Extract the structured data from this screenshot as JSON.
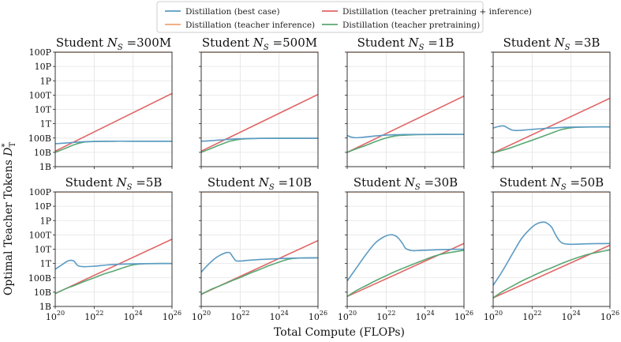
{
  "chart_data": {
    "type": "line",
    "xlabel": "Total Compute (FLOPs)",
    "ylabel": "Optimal Teacher Tokens D*T",
    "ylabel_main": "Optimal Teacher Tokens ",
    "ylabel_sym": "D",
    "ylabel_sup": "*",
    "ylabel_sub": "T",
    "x_scale": "log",
    "y_scale": "log",
    "xlim": [
      1e+20,
      1e+26
    ],
    "ylim": [
      1000000000.0,
      1e+17
    ],
    "x_ticks": [
      {
        "value": 1e+20,
        "base": "10",
        "exp": "20"
      },
      {
        "value": 1e+22,
        "base": "10",
        "exp": "22"
      },
      {
        "value": 1e+24,
        "base": "10",
        "exp": "24"
      },
      {
        "value": 1e+26,
        "base": "10",
        "exp": "26"
      }
    ],
    "y_ticks": [
      {
        "value": 1000000000.0,
        "label": "1B"
      },
      {
        "value": 10000000000.0,
        "label": "10B"
      },
      {
        "value": 100000000000.0,
        "label": "100B"
      },
      {
        "value": 1000000000000.0,
        "label": "1T"
      },
      {
        "value": 10000000000000.0,
        "label": "10T"
      },
      {
        "value": 100000000000000.0,
        "label": "100T"
      },
      {
        "value": 1000000000000000.0,
        "label": "1P"
      },
      {
        "value": 1e+16,
        "label": "10P"
      },
      {
        "value": 1e+17,
        "label": "100P"
      }
    ],
    "grid": true,
    "legend": {
      "placement": "top-center",
      "entries": [
        {
          "label": "Distillation (best case)",
          "color": "#5b9bc4"
        },
        {
          "label": "Distillation (teacher inference)",
          "color": "#f0a574"
        },
        {
          "label": "Distillation (teacher pretraining + inference)",
          "color": "#e06666"
        },
        {
          "label": "Distillation (teacher pretraining)",
          "color": "#5aa873"
        }
      ]
    },
    "colors": {
      "best": "#5b9bc4",
      "inference": "#f0a574",
      "pre_inf": "#e06666",
      "pre": "#5aa873"
    },
    "panels": [
      {
        "title_prefix": "Student ",
        "title_sym": "N",
        "title_sub": "S",
        "title_value": " =300M",
        "series": {
          "inference": {
            "x": [
              1e+20,
              1e+26
            ],
            "y": [
              1e+17,
              1e+17
            ]
          },
          "pre_inf": {
            "x": [
              1e+20,
              1e+26
            ],
            "y": [
              12000000000.0,
              130000000000000.0
            ]
          },
          "pre": {
            "x": [
              1e+20,
              3e+20,
              1e+21,
              3e+21,
              1e+22,
              1e+23,
              1e+24,
              1e+26
            ],
            "y": [
              10000000000.0,
              18000000000.0,
              35000000000.0,
              52000000000.0,
              57000000000.0,
              60000000000.0,
              60000000000.0,
              60000000000.0
            ]
          },
          "best": {
            "x": [
              1e+20,
              3e+20,
              1e+21,
              3e+21,
              1e+22,
              1e+23,
              1e+24,
              1e+26
            ],
            "y": [
              40000000000.0,
              44000000000.0,
              50000000000.0,
              55000000000.0,
              58000000000.0,
              60000000000.0,
              60000000000.0,
              60000000000.0
            ]
          }
        }
      },
      {
        "title_prefix": "Student ",
        "title_sym": "N",
        "title_sub": "S",
        "title_value": " =500M",
        "series": {
          "inference": {
            "x": [
              1e+20,
              1e+26
            ],
            "y": [
              1e+17,
              1e+17
            ]
          },
          "pre_inf": {
            "x": [
              1e+20,
              1e+26
            ],
            "y": [
              12000000000.0,
              110000000000000.0
            ]
          },
          "pre": {
            "x": [
              1e+20,
              3e+20,
              1e+21,
              3e+21,
              1e+22,
              3e+22,
              1e+23,
              1e+24,
              1e+26
            ],
            "y": [
              10000000000.0,
              18000000000.0,
              35000000000.0,
              60000000000.0,
              82000000000.0,
              90000000000.0,
              95000000000.0,
              96000000000.0,
              96000000000.0
            ]
          },
          "best": {
            "x": [
              1e+20,
              3e+20,
              1e+21,
              3e+21,
              1e+22,
              3e+22,
              1e+23,
              1e+24,
              1e+26
            ],
            "y": [
              60000000000.0,
              65000000000.0,
              73000000000.0,
              82000000000.0,
              88000000000.0,
              92000000000.0,
              95000000000.0,
              96000000000.0,
              96000000000.0
            ]
          }
        }
      },
      {
        "title_prefix": "Student ",
        "title_sym": "N",
        "title_sub": "S",
        "title_value": " =1B",
        "series": {
          "inference": {
            "x": [
              1e+20,
              1e+26
            ],
            "y": [
              1e+17,
              1e+17
            ]
          },
          "pre_inf": {
            "x": [
              1e+20,
              1e+26
            ],
            "y": [
              10000000000.0,
              85000000000000.0
            ]
          },
          "pre": {
            "x": [
              1e+20,
              3e+20,
              1e+21,
              3e+21,
              1e+22,
              3e+22,
              1e+23,
              3e+23,
              1e+24,
              1e+26
            ],
            "y": [
              10000000000.0,
              18000000000.0,
              32000000000.0,
              58000000000.0,
              100000000000.0,
              140000000000.0,
              160000000000.0,
              170000000000.0,
              175000000000.0,
              180000000000.0
            ]
          },
          "best": {
            "x": [
              1e+20,
              1.5e+20,
              2.5e+20,
              5e+20,
              1e+21,
              3e+21,
              1e+22,
              3e+22,
              1e+23,
              1e+24,
              1e+26
            ],
            "y": [
              150000000000.0,
              120000000000.0,
              105000000000.0,
              110000000000.0,
              120000000000.0,
              140000000000.0,
              160000000000.0,
              170000000000.0,
              175000000000.0,
              180000000000.0,
              180000000000.0
            ]
          }
        }
      },
      {
        "title_prefix": "Student ",
        "title_sym": "N",
        "title_sub": "S",
        "title_value": " =3B",
        "series": {
          "inference": {
            "x": [
              1e+20,
              1e+26
            ],
            "y": [
              1e+17,
              1e+17
            ]
          },
          "pre_inf": {
            "x": [
              1e+20,
              1e+26
            ],
            "y": [
              9000000000.0,
              60000000000000.0
            ]
          },
          "pre": {
            "x": [
              1e+20,
              3e+20,
              1e+21,
              3e+21,
              1e+22,
              3e+22,
              1e+23,
              3e+23,
              1e+24,
              3e+24,
              1e+25,
              1e+26
            ],
            "y": [
              9000000000.0,
              14000000000.0,
              23000000000.0,
              40000000000.0,
              70000000000.0,
              120000000000.0,
              220000000000.0,
              380000000000.0,
              520000000000.0,
              580000000000.0,
              600000000000.0,
              600000000000.0
            ]
          },
          "best": {
            "x": [
              1e+20,
              2e+20,
              3.5e+20,
              6e+20,
              1e+21,
              2e+21,
              5e+21,
              1e+22,
              3e+22,
              1e+23,
              1e+24,
              1e+26
            ],
            "y": [
              500000000000.0,
              650000000000.0,
              700000000000.0,
              480000000000.0,
              350000000000.0,
              340000000000.0,
              370000000000.0,
              400000000000.0,
              450000000000.0,
              500000000000.0,
              580000000000.0,
              600000000000.0
            ]
          }
        }
      },
      {
        "title_prefix": "Student ",
        "title_sym": "N",
        "title_sub": "S",
        "title_value": " =5B",
        "series": {
          "inference": {
            "x": [
              1e+20,
              1e+26
            ],
            "y": [
              1e+17,
              1e+17
            ]
          },
          "pre_inf": {
            "x": [
              1e+20,
              1e+26
            ],
            "y": [
              8000000000.0,
              50000000000000.0
            ]
          },
          "pre": {
            "x": [
              1e+20,
              3e+20,
              1e+21,
              3e+21,
              1e+22,
              3e+22,
              1e+23,
              3e+23,
              1e+24,
              3e+24,
              1e+25,
              1e+26
            ],
            "y": [
              8000000000.0,
              16000000000.0,
              30000000000.0,
              55000000000.0,
              100000000000.0,
              180000000000.0,
              300000000000.0,
              500000000000.0,
              800000000000.0,
              950000000000.0,
              1000000000000.0,
              1000000000000.0
            ]
          },
          "best": {
            "x": [
              1e+20,
              2e+20,
              4e+20,
              6e+20,
              8e+20,
              1e+21,
              1.5e+21,
              3e+21,
              1e+22,
              3e+22,
              1e+23,
              1e+24,
              1e+26
            ],
            "y": [
              400000000000.0,
              750000000000.0,
              1400000000000.0,
              1650000000000.0,
              1600000000000.0,
              1300000000000.0,
              700000000000.0,
              600000000000.0,
              650000000000.0,
              750000000000.0,
              850000000000.0,
              950000000000.0,
              1000000000000.0
            ]
          }
        }
      },
      {
        "title_prefix": "Student ",
        "title_sym": "N",
        "title_sub": "S",
        "title_value": " =10B",
        "series": {
          "inference": {
            "x": [
              1e+20,
              1e+26
            ],
            "y": [
              1e+17,
              1e+17
            ]
          },
          "pre_inf": {
            "x": [
              1e+20,
              1e+26
            ],
            "y": [
              7000000000.0,
              40000000000000.0
            ]
          },
          "pre": {
            "x": [
              1e+20,
              3e+20,
              1e+21,
              3e+21,
              1e+22,
              3e+22,
              1e+23,
              3e+23,
              1e+24,
              3e+24,
              1e+25,
              1e+26
            ],
            "y": [
              7000000000.0,
              15000000000.0,
              29000000000.0,
              55000000000.0,
              105000000000.0,
              200000000000.0,
              380000000000.0,
              700000000000.0,
              1250000000000.0,
              2000000000000.0,
              2400000000000.0,
              2500000000000.0
            ]
          },
          "best": {
            "x": [
              1e+20,
              2e+20,
              5e+20,
              1e+21,
              2e+21,
              3e+21,
              4e+21,
              6e+21,
              1e+22,
              3e+22,
              1e+23,
              1e+24,
              1e+25,
              1e+26
            ],
            "y": [
              250000000000.0,
              700000000000.0,
              2200000000000.0,
              4000000000000.0,
              5800000000000.0,
              5500000000000.0,
              3200000000000.0,
              1600000000000.0,
              1500000000000.0,
              1700000000000.0,
              1900000000000.0,
              2200000000000.0,
              2400000000000.0,
              2500000000000.0
            ]
          }
        }
      },
      {
        "title_prefix": "Student ",
        "title_sym": "N",
        "title_sub": "S",
        "title_value": " =30B",
        "series": {
          "inference": {
            "x": [
              1e+20,
              1e+26
            ],
            "y": [
              1e+17,
              1e+17
            ]
          },
          "pre_inf": {
            "x": [
              1e+20,
              1e+26
            ],
            "y": [
              5000000000.0,
              25000000000000.0
            ]
          },
          "pre": {
            "x": [
              1e+20,
              3e+20,
              1e+21,
              3e+21,
              1e+22,
              3e+22,
              1e+23,
              3e+23,
              1e+24,
              3e+24,
              1e+25,
              1e+26
            ],
            "y": [
              5000000000.0,
              13000000000.0,
              30000000000.0,
              65000000000.0,
              140000000000.0,
              280000000000.0,
              550000000000.0,
              1000000000000.0,
              1900000000000.0,
              3300000000000.0,
              5000000000000.0,
              8500000000000.0
            ]
          },
          "best": {
            "x": [
              1e+20,
              3e+20,
              1e+21,
              3e+21,
              8e+21,
              1.5e+22,
              2.5e+22,
              4e+22,
              7e+22,
              1e+23,
              2e+23,
              4e+23,
              1e+24,
              1e+25,
              1e+26
            ],
            "y": [
              60000000000.0,
              500000000000.0,
              5000000000000.0,
              30000000000000.0,
              75000000000000.0,
              100000000000000.0,
              95000000000000.0,
              65000000000000.0,
              25000000000000.0,
              11500000000000.0,
              8000000000000.0,
              8000000000000.0,
              8500000000000.0,
              9500000000000.0,
              10000000000000.0
            ]
          }
        }
      },
      {
        "title_prefix": "Student ",
        "title_sym": "N",
        "title_sub": "S",
        "title_value": " =50B",
        "series": {
          "inference": {
            "x": [
              1e+20,
              1e+26
            ],
            "y": [
              1e+17,
              1e+17
            ]
          },
          "pre_inf": {
            "x": [
              1e+20,
              1e+26
            ],
            "y": [
              4000000000.0,
              19000000000000.0
            ]
          },
          "pre": {
            "x": [
              1e+20,
              3e+20,
              1e+21,
              3e+21,
              1e+22,
              3e+22,
              1e+23,
              3e+23,
              1e+24,
              3e+24,
              1e+25,
              1e+26
            ],
            "y": [
              4000000000.0,
              11000000000.0,
              27000000000.0,
              60000000000.0,
              130000000000.0,
              260000000000.0,
              500000000000.0,
              950000000000.0,
              1800000000000.0,
              3000000000000.0,
              4800000000000.0,
              9000000000000.0
            ]
          },
          "best": {
            "x": [
              1e+20,
              3e+20,
              1e+21,
              3e+21,
              1e+22,
              2e+22,
              4e+22,
              6e+22,
              1e+23,
              1.5e+23,
              2.5e+23,
              4e+23,
              1e+24,
              1e+25,
              1e+26
            ],
            "y": [
              30000000000.0,
              300000000000.0,
              5000000000000.0,
              60000000000000.0,
              350000000000000.0,
              650000000000000.0,
              780000000000000.0,
              650000000000000.0,
              350000000000000.0,
              120000000000000.0,
              40000000000000.0,
              25000000000000.0,
              22000000000000.0,
              24000000000000.0,
              25000000000000.0
            ]
          }
        }
      }
    ]
  }
}
